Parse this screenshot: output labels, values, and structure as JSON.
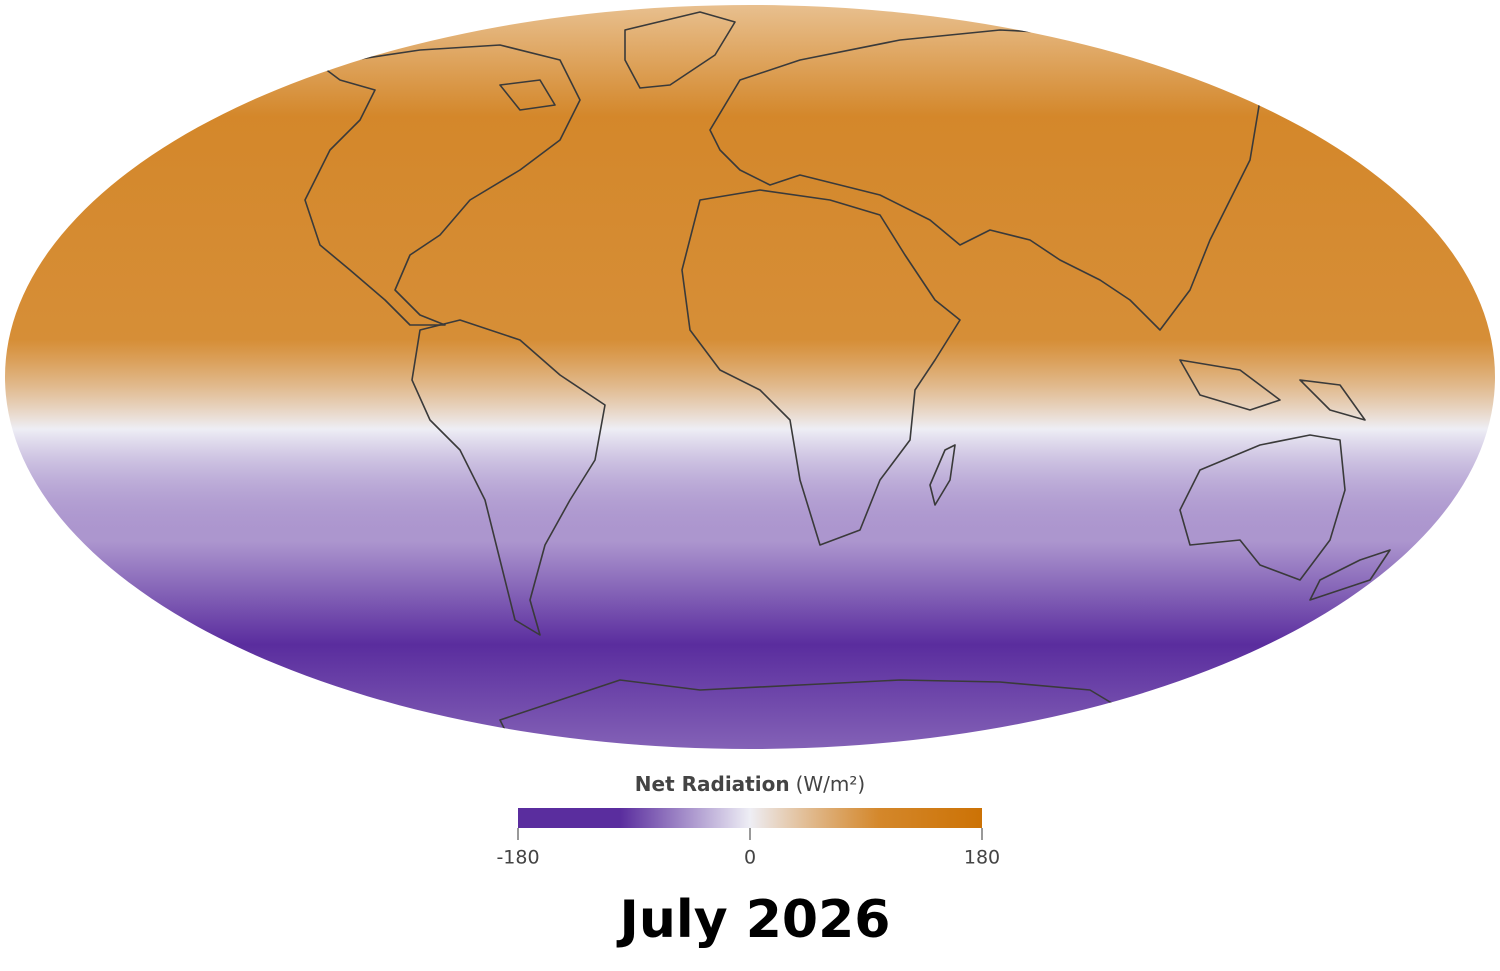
{
  "legend": {
    "title": "Net Radiation",
    "unit": "(W/m²)",
    "range": [
      -180,
      180
    ],
    "ticks": [
      -180,
      0,
      180
    ],
    "colors": [
      "#5a2d9e",
      "#eeeef5",
      "#cc7205"
    ]
  },
  "caption": "July 2026"
}
